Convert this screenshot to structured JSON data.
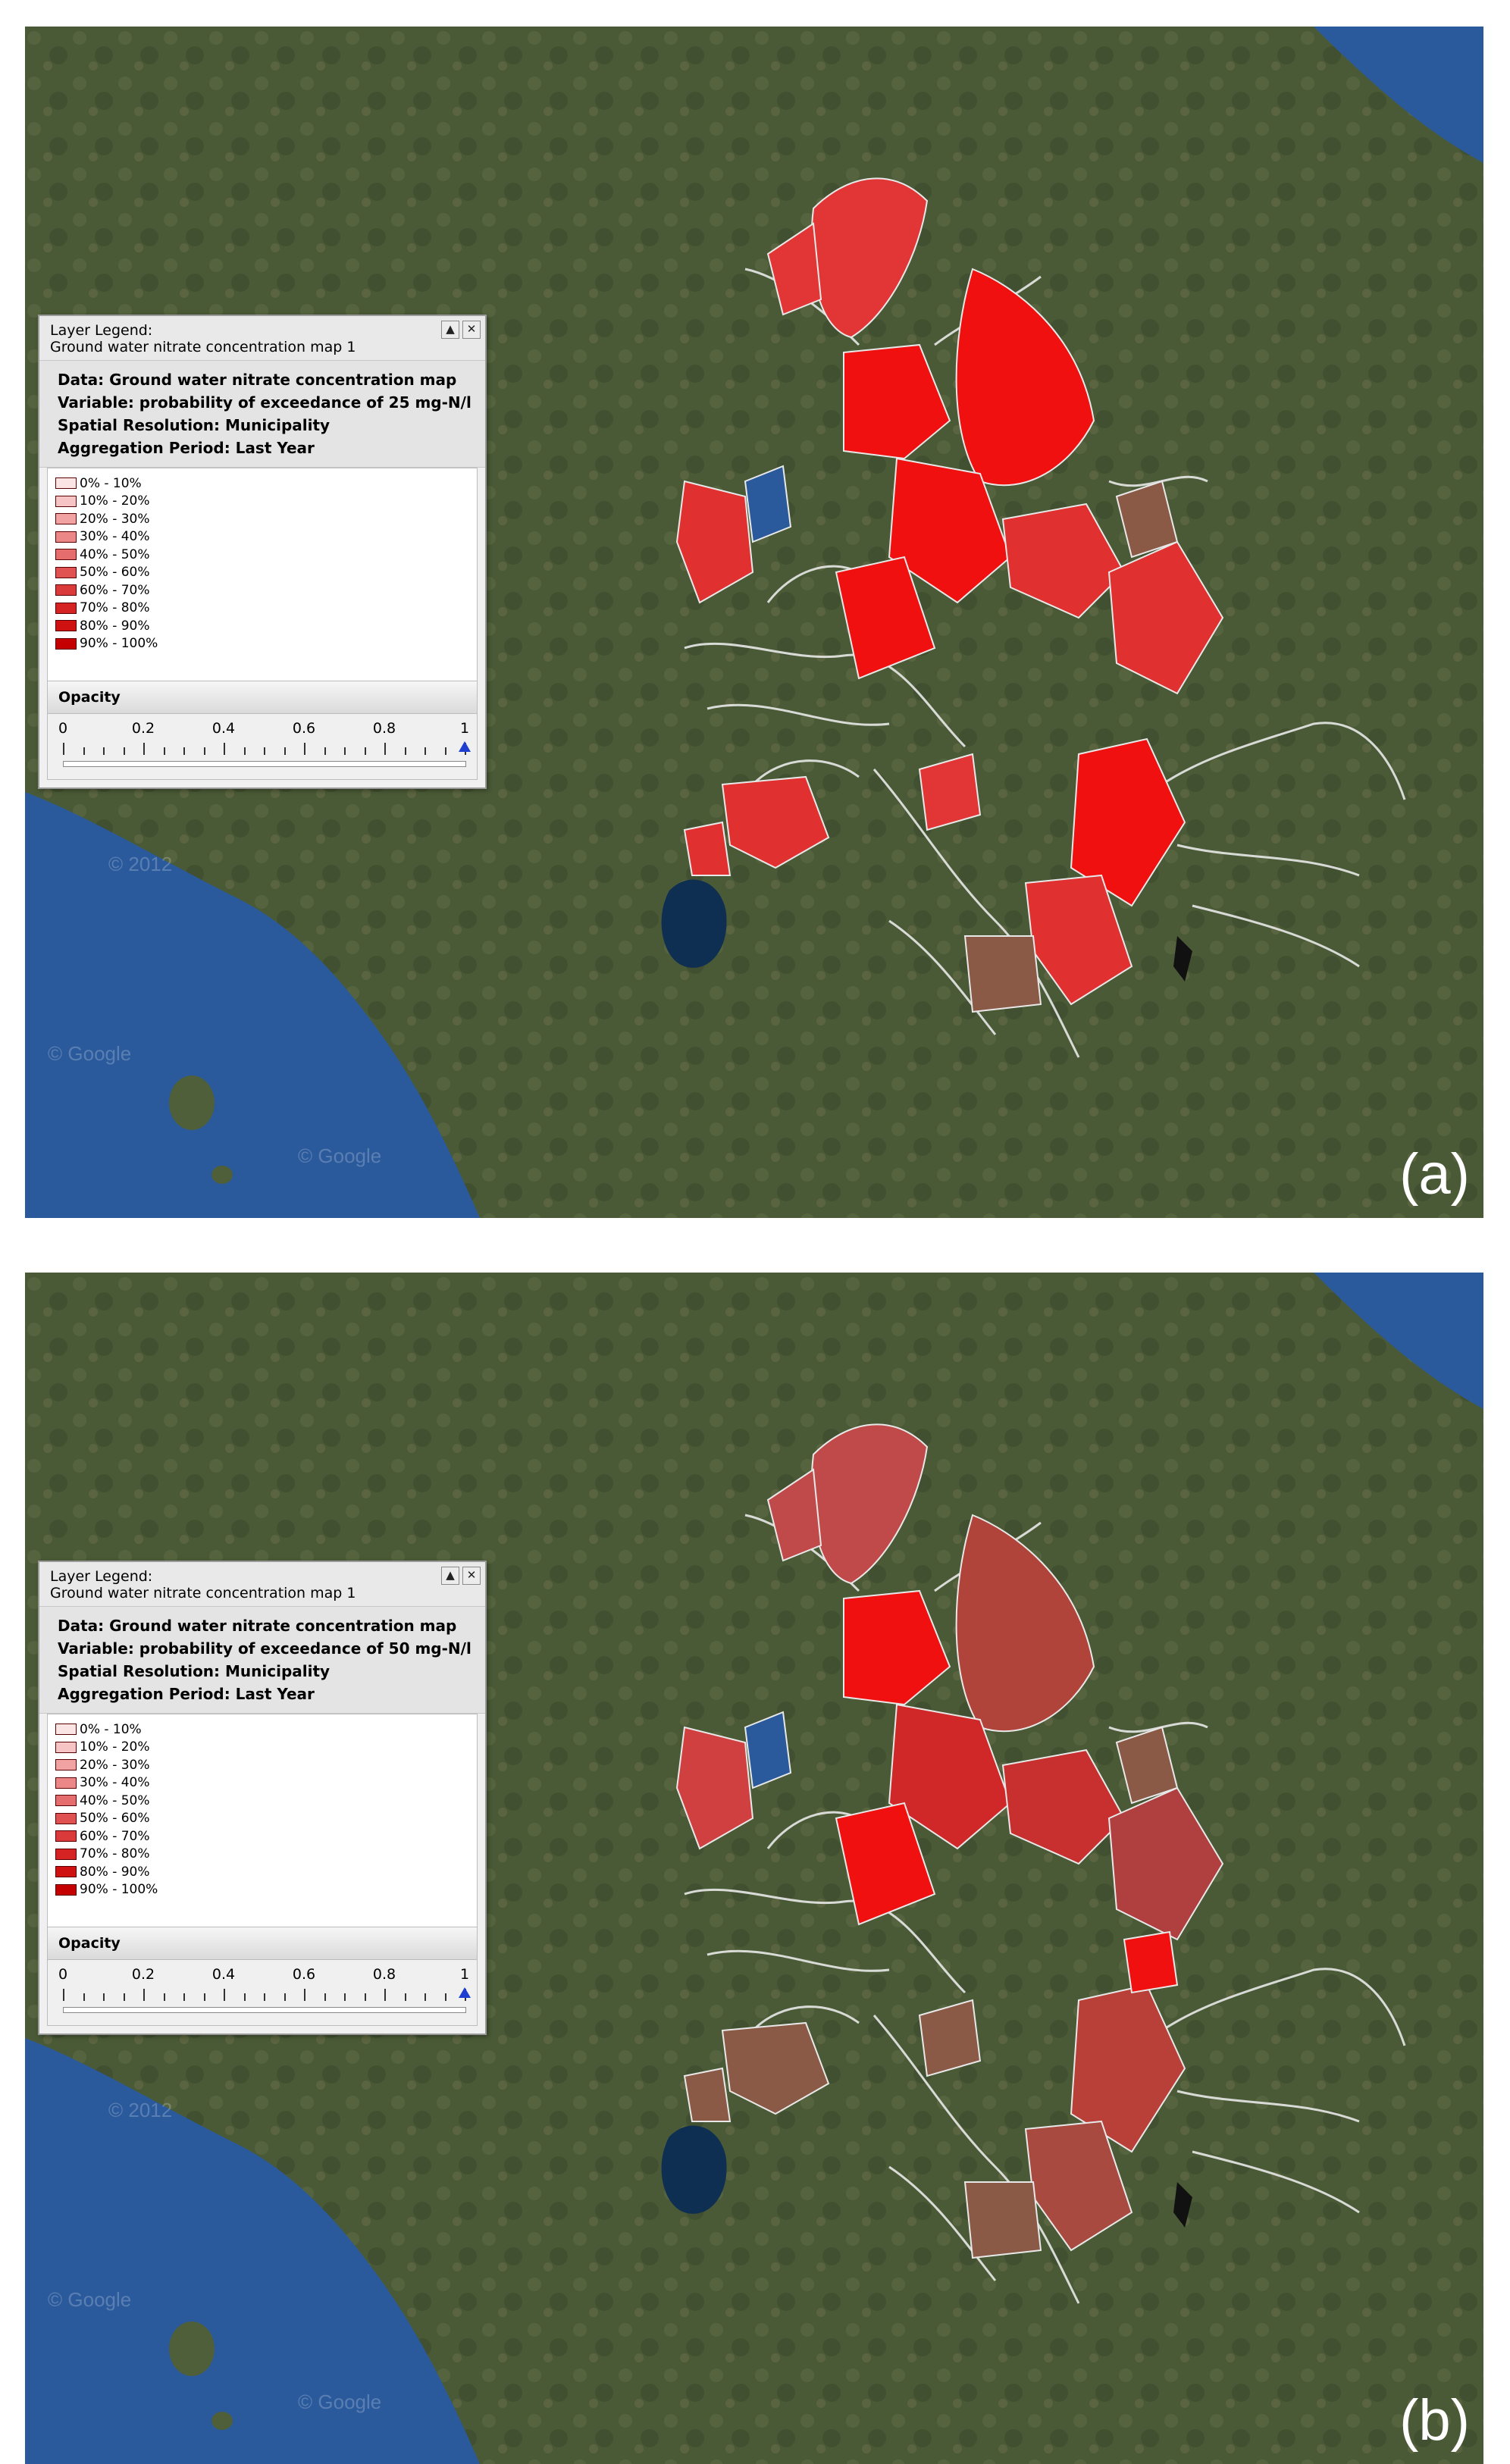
{
  "figure": {
    "panels": [
      {
        "id": "a",
        "label": "(a)",
        "legend": {
          "header_line1": "Layer Legend:",
          "header_line2": "Ground water nitrate concentration map 1",
          "info": {
            "data": "Data: Ground water nitrate concentration map",
            "variable": "Variable: probability of exceedance of 25 mg-N/l",
            "resolution": "Spatial Resolution: Municipality",
            "aggregation": "Aggregation Period: Last Year"
          },
          "opacity_title": "Opacity",
          "opacity_ticks": [
            "0",
            "0.2",
            "0.4",
            "0.6",
            "0.8",
            "1"
          ],
          "opacity_value": 1.0
        },
        "watermarks": [
          "© 2012",
          "© Google",
          "© Google"
        ]
      },
      {
        "id": "b",
        "label": "(b)",
        "legend": {
          "header_line1": "Layer Legend:",
          "header_line2": "Ground water nitrate concentration map 1",
          "info": {
            "data": "Data: Ground water nitrate concentration map",
            "variable": "Variable: probability of exceedance of 50 mg-N/l",
            "resolution": "Spatial Resolution: Municipality",
            "aggregation": "Aggregation Period: Last Year"
          },
          "opacity_title": "Opacity",
          "opacity_ticks": [
            "0",
            "0.2",
            "0.4",
            "0.6",
            "0.8",
            "1"
          ],
          "opacity_value": 1.0
        },
        "watermarks": [
          "© 2012",
          "© Google",
          "© Google"
        ]
      }
    ]
  },
  "legend_classes": [
    {
      "label": "0% - 10%",
      "color": "#fbe4e4"
    },
    {
      "label": "10% - 20%",
      "color": "#f6c4c4"
    },
    {
      "label": "20% - 30%",
      "color": "#f1a3a3"
    },
    {
      "label": "30% - 40%",
      "color": "#ec8787"
    },
    {
      "label": "40% - 50%",
      "color": "#e66d6d"
    },
    {
      "label": "50% - 60%",
      "color": "#e05252"
    },
    {
      "label": "60% - 70%",
      "color": "#da3a3a"
    },
    {
      "label": "70% - 80%",
      "color": "#d52222"
    },
    {
      "label": "80% - 90%",
      "color": "#cf1111"
    },
    {
      "label": "90% - 100%",
      "color": "#c40000"
    }
  ],
  "colors": {
    "land": "#4a5a36",
    "sea": "#2b5a9c",
    "lake": "#0f2f52",
    "boundary": "#e8e8e8",
    "unclassified": "#8a5a47",
    "cursor": "#1f3fd0"
  }
}
